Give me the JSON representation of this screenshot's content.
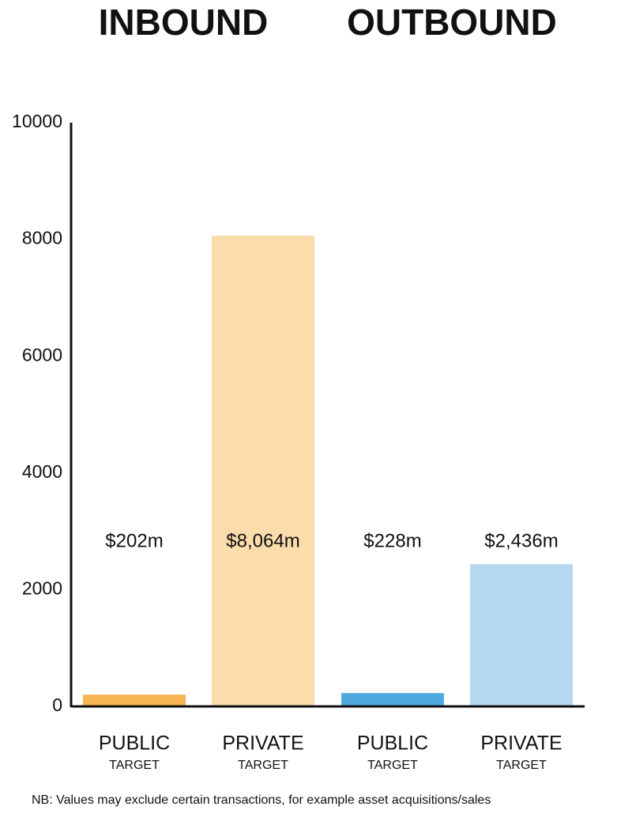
{
  "chart_data": {
    "type": "bar",
    "groups": [
      "INBOUND",
      "OUTBOUND"
    ],
    "categories": [
      "PUBLIC",
      "PRIVATE",
      "PUBLIC",
      "PRIVATE"
    ],
    "category_sublabels": [
      "TARGET",
      "TARGET",
      "TARGET",
      "TARGET"
    ],
    "values": [
      202,
      8064,
      228,
      2436
    ],
    "value_labels": [
      "$202m",
      "$8,064m",
      "$228m",
      "$2,436m"
    ],
    "colors": [
      "#f6b453",
      "#fbdcab",
      "#4eaade",
      "#b6d7f0"
    ],
    "ylim": [
      0,
      10000
    ],
    "yticks": [
      0,
      2000,
      4000,
      6000,
      8000,
      10000
    ],
    "grid": false,
    "footnote": "NB: Values may exclude certain transactions, for example asset acquisitions/sales"
  }
}
